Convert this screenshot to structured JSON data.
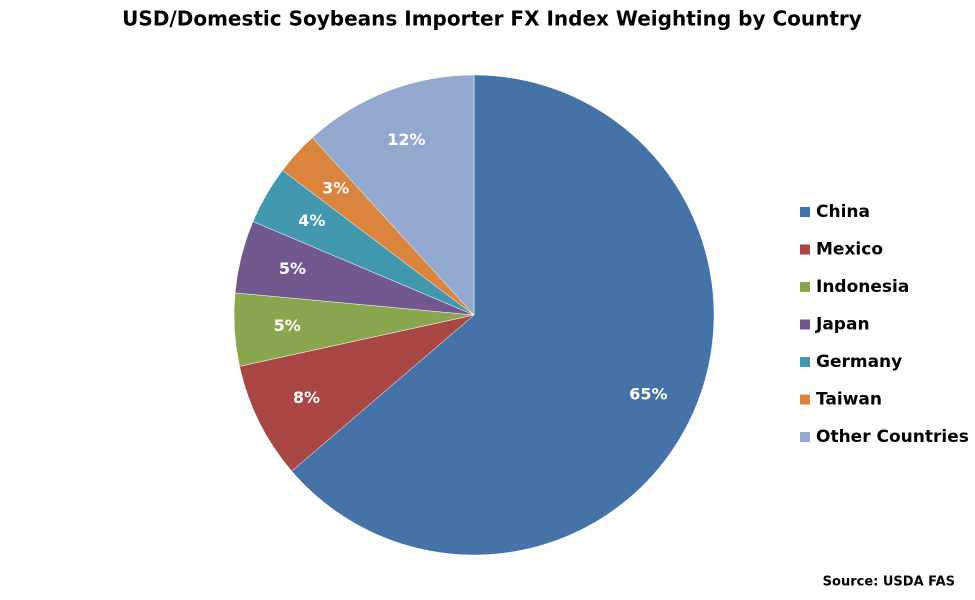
{
  "chart_data": {
    "type": "pie",
    "title": "USD/Domestic Soybeans Importer FX Index Weighting by Country",
    "categories": [
      "China",
      "Mexico",
      "Indonesia",
      "Japan",
      "Germany",
      "Taiwan",
      "Other Countries"
    ],
    "values": [
      65,
      8,
      5,
      5,
      4,
      3,
      12
    ],
    "value_labels": [
      "65%",
      "8%",
      "5%",
      "5%",
      "4%",
      "3%",
      "12%"
    ],
    "colors": [
      "#4572a7",
      "#aa4643",
      "#89a54e",
      "#71588f",
      "#4198af",
      "#db843d",
      "#93a9cf"
    ],
    "legend": "right",
    "source": "Source: USDA FAS"
  }
}
